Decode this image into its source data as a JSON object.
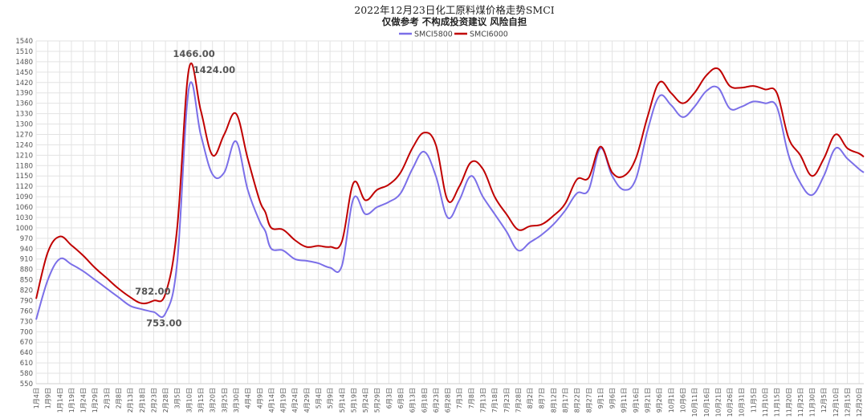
{
  "chart_data": {
    "type": "line",
    "title": "2022年12月23日化工原料煤价格走势SMCI",
    "subtitle": "仅做参考 不构成投资建议 风险自担",
    "legend_position": "top",
    "grid": true,
    "ylim": [
      550,
      1540
    ],
    "y_step": 30,
    "x_tick_labels": [
      "1月4日",
      "1月9日",
      "1月14日",
      "1月19日",
      "1月24日",
      "1月29日",
      "2月3日",
      "2月8日",
      "2月13日",
      "2月18日",
      "2月23日",
      "2月28日",
      "3月5日",
      "3月10日",
      "3月15日",
      "3月20日",
      "3月25日",
      "3月30日",
      "4月4日",
      "4月9日",
      "4月14日",
      "4月19日",
      "4月24日",
      "4月29日",
      "5月4日",
      "5月9日",
      "5月14日",
      "5月19日",
      "5月24日",
      "5月29日",
      "6月3日",
      "6月8日",
      "6月13日",
      "6月18日",
      "6月23日",
      "6月28日",
      "7月3日",
      "7月8日",
      "7月13日",
      "7月18日",
      "7月23日",
      "7月28日",
      "8月2日",
      "8月7日",
      "8月12日",
      "8月17日",
      "8月22日",
      "8月27日",
      "9月1日",
      "9月6日",
      "9月11日",
      "9月16日",
      "9月21日",
      "9月26日",
      "10月1日",
      "10月6日",
      "10月11日",
      "10月16日",
      "10月21日",
      "10月26日",
      "10月31日",
      "11月5日",
      "11月10日",
      "11月15日",
      "11月20日",
      "11月25日",
      "11月30日",
      "12月5日",
      "12月10日",
      "12月15日",
      "12月20日"
    ],
    "series": [
      {
        "name": "SMCI5800",
        "color": "#7b6fe8",
        "x": [
          0,
          1,
          2,
          3,
          4,
          5,
          6,
          7,
          8,
          9,
          10,
          11,
          12,
          13,
          14,
          15,
          16,
          17,
          18,
          19,
          19.5,
          20,
          21,
          22,
          23,
          24,
          25,
          26,
          27,
          28,
          29,
          30,
          31,
          32,
          33,
          34,
          35,
          36,
          37,
          38,
          39,
          40,
          41,
          42,
          43,
          44,
          45,
          46,
          47,
          48,
          49,
          50,
          51,
          52,
          53,
          54,
          55,
          56,
          57,
          58,
          59,
          60,
          61,
          62,
          63,
          64,
          65,
          66,
          67,
          68,
          69,
          70,
          70.4
        ],
        "values": [
          735,
          850,
          910,
          895,
          875,
          850,
          825,
          800,
          775,
          765,
          757,
          753,
          900,
          1405,
          1270,
          1155,
          1160,
          1250,
          1110,
          1020,
          990,
          940,
          935,
          910,
          905,
          898,
          885,
          890,
          1085,
          1040,
          1060,
          1075,
          1100,
          1170,
          1220,
          1150,
          1030,
          1080,
          1150,
          1090,
          1040,
          990,
          935,
          958,
          980,
          1010,
          1050,
          1100,
          1110,
          1230,
          1150,
          1110,
          1140,
          1280,
          1380,
          1355,
          1320,
          1350,
          1395,
          1405,
          1345,
          1350,
          1365,
          1360,
          1350,
          1210,
          1130,
          1095,
          1150,
          1230,
          1200,
          1170,
          1160
        ]
      },
      {
        "name": "SMCI6000",
        "color": "#c00000",
        "x": [
          0,
          1,
          2,
          3,
          4,
          5,
          6,
          7,
          8,
          9,
          10,
          11,
          12,
          13,
          14,
          15,
          16,
          17,
          18,
          19,
          19.5,
          20,
          21,
          22,
          23,
          24,
          25,
          26,
          27,
          28,
          29,
          30,
          31,
          32,
          33,
          34,
          35,
          36,
          37,
          38,
          39,
          40,
          41,
          42,
          43,
          44,
          45,
          46,
          47,
          48,
          49,
          50,
          51,
          52,
          53,
          54,
          55,
          56,
          57,
          58,
          59,
          60,
          61,
          62,
          63,
          64,
          65,
          66,
          67,
          68,
          69,
          70,
          70.4
        ],
        "values": [
          795,
          930,
          975,
          950,
          920,
          885,
          855,
          825,
          800,
          782,
          790,
          810,
          1000,
          1460,
          1340,
          1210,
          1270,
          1330,
          1200,
          1080,
          1045,
          1000,
          995,
          965,
          945,
          948,
          945,
          960,
          1130,
          1080,
          1110,
          1125,
          1160,
          1230,
          1275,
          1240,
          1080,
          1120,
          1190,
          1170,
          1090,
          1040,
          995,
          1005,
          1010,
          1035,
          1070,
          1140,
          1145,
          1235,
          1160,
          1150,
          1200,
          1320,
          1420,
          1390,
          1360,
          1390,
          1440,
          1460,
          1410,
          1405,
          1410,
          1400,
          1390,
          1260,
          1210,
          1150,
          1200,
          1270,
          1230,
          1215,
          1205
        ]
      }
    ],
    "annotations": [
      {
        "text": "1466.00",
        "x": 13,
        "y": 1466
      },
      {
        "text": "1424.00",
        "x": 13.5,
        "y": 1424
      },
      {
        "text": "782.00",
        "x": 9.5,
        "y": 782
      },
      {
        "text": "753.00",
        "x": 11,
        "y": 753
      }
    ]
  }
}
